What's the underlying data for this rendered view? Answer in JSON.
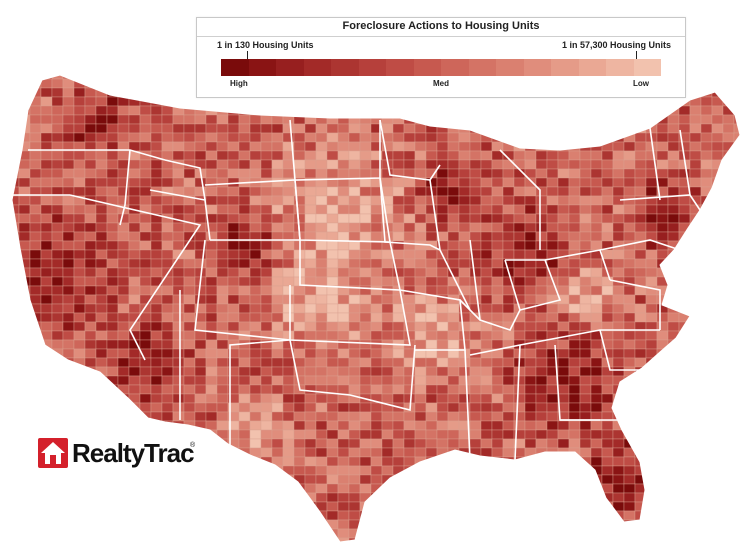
{
  "legend": {
    "title": "Foreclosure Actions to Housing Units",
    "left_label": "1 in 130 Housing Units",
    "right_label": "1 in 57,300 Housing Units",
    "high_label": "High",
    "med_label": "Med",
    "low_label": "Low",
    "ramp_colors": [
      "#7a0b0b",
      "#8a1414",
      "#971f1f",
      "#a32a28",
      "#ac3531",
      "#b6403b",
      "#bf4c45",
      "#c7594f",
      "#ce665a",
      "#d47365",
      "#da8070",
      "#e08d7c",
      "#e59b88",
      "#eaa894",
      "#eeb5a1",
      "#f2c2ae"
    ]
  },
  "logo": {
    "brand": "RealtyTrac",
    "mark": "®",
    "brand_color": "#d4202b"
  },
  "map": {
    "land_color": "#e9a592",
    "border_color": "#ffffff"
  }
}
